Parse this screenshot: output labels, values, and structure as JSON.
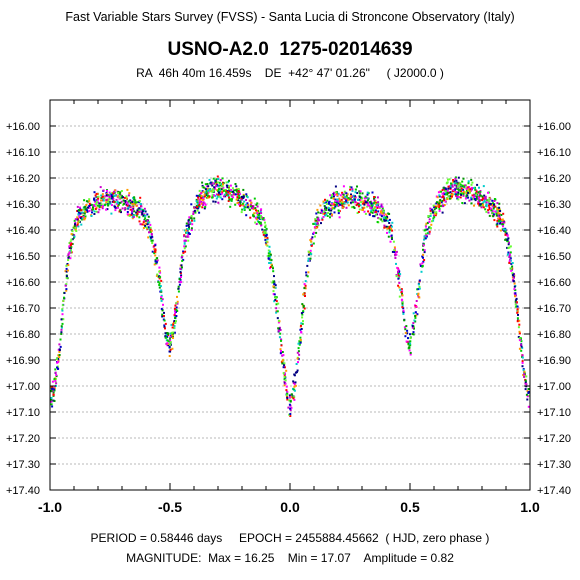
{
  "header": {
    "survey": "Fast Variable Stars Survey (FVSS) - Santa Lucia di Stroncone Observatory (Italy)",
    "star_name": "USNO-A2.0  1275-02014639",
    "coordinates": "RA  46h 40m 16.459s    DE  +42° 47' 01.26\"     ( J2000.0 )"
  },
  "footer": {
    "line1": "PERIOD = 0.58446 days     EPOCH = 2455884.45662  ( HJD, zero phase )",
    "line2": "MAGNITUDE:  Max = 16.25    Min = 17.07    Amplitude = 0.82"
  },
  "chart_data": {
    "type": "scatter",
    "title": "USNO-A2.0  1275-02014639",
    "xlim": [
      -1.0,
      1.0
    ],
    "ylim": [
      15.9,
      17.4
    ],
    "y_inverted": true,
    "grid": "horizontal dashed",
    "x_ticks": [
      "-1.0",
      "-0.5",
      "0.0",
      "0.5",
      "1.0"
    ],
    "y_ticks": [
      "+16.00",
      "+16.10",
      "+16.20",
      "+16.30",
      "+16.40",
      "+16.50",
      "+16.60",
      "+16.70",
      "+16.80",
      "+16.90",
      "+17.00",
      "+17.10",
      "+17.20",
      "+17.30",
      "+17.40"
    ],
    "period_days": 0.58446,
    "epoch_hjd": 2455884.45662,
    "mag_max": 16.25,
    "mag_min": 17.07,
    "amplitude": 0.82,
    "light_curve": {
      "phase": [
        0.0,
        0.02,
        0.04,
        0.06,
        0.08,
        0.1,
        0.12,
        0.15,
        0.18,
        0.21,
        0.24,
        0.27,
        0.3,
        0.33,
        0.36,
        0.39,
        0.42,
        0.44,
        0.46,
        0.48,
        0.5,
        0.52,
        0.54,
        0.56,
        0.58,
        0.61,
        0.64,
        0.67,
        0.7,
        0.73,
        0.76,
        0.79,
        0.82,
        0.85,
        0.88,
        0.9,
        0.92,
        0.94,
        0.96,
        0.98,
        1.0
      ],
      "magnitude": [
        17.07,
        17.0,
        16.85,
        16.65,
        16.5,
        16.4,
        16.35,
        16.32,
        16.3,
        16.29,
        16.28,
        16.28,
        16.29,
        16.3,
        16.31,
        16.34,
        16.4,
        16.5,
        16.62,
        16.78,
        16.85,
        16.75,
        16.6,
        16.45,
        16.37,
        16.31,
        16.27,
        16.25,
        16.24,
        16.25,
        16.26,
        16.28,
        16.3,
        16.32,
        16.36,
        16.42,
        16.52,
        16.65,
        16.82,
        16.98,
        17.07
      ]
    },
    "observation_colors": [
      "#ff0000",
      "#0000c8",
      "#00cc00",
      "#ff00ff",
      "#00cccc",
      "#ff9900",
      "#009900",
      "#000080",
      "#cc00cc",
      "#66ff33"
    ]
  }
}
